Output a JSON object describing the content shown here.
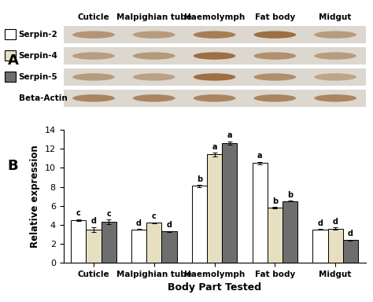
{
  "chart_data": {
    "type": "bar",
    "panel_label": "B",
    "x_label": "Body Part Tested",
    "y_label": "Relative expression",
    "categories": [
      "Cuticle",
      "Malpighian tube",
      "Haemolymph",
      "Fat body",
      "Midgut"
    ],
    "series": [
      {
        "name": "Serpin-2",
        "color": "#ffffff",
        "values": [
          4.5,
          3.5,
          8.1,
          10.5,
          3.5
        ],
        "errors": [
          0.1,
          0.05,
          0.1,
          0.15,
          0.05
        ],
        "letters": [
          "c",
          "d",
          "b",
          "a",
          "d"
        ]
      },
      {
        "name": "Serpin-4",
        "color": "#e6dfc0",
        "values": [
          3.5,
          4.2,
          11.4,
          5.8,
          3.6
        ],
        "errors": [
          0.25,
          0.05,
          0.2,
          0.05,
          0.1
        ],
        "letters": [
          "d",
          "c",
          "a",
          "b",
          "d"
        ]
      },
      {
        "name": "Serpin-5",
        "color": "#6e6e6e",
        "values": [
          4.3,
          3.3,
          12.6,
          6.5,
          2.4
        ],
        "errors": [
          0.25,
          0.05,
          0.2,
          0.05,
          0.05
        ],
        "letters": [
          "c",
          "d",
          "a",
          "b",
          "d"
        ]
      }
    ],
    "ylim": [
      0,
      14
    ],
    "yticks": [
      0,
      2,
      4,
      6,
      8,
      10,
      12,
      14
    ],
    "grid": false
  },
  "blot": {
    "panel_label": "A",
    "control_row": "Beta-Actin"
  }
}
